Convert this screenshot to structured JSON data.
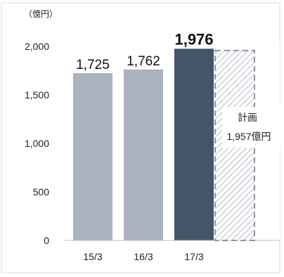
{
  "chart_data": {
    "type": "bar",
    "unit_label": "（億円）",
    "categories": [
      "15/3",
      "16/3",
      "17/3"
    ],
    "values": [
      1725,
      1762,
      1976
    ],
    "value_labels": [
      "1,725",
      "1,762",
      "1,976"
    ],
    "ylim": [
      0,
      2000
    ],
    "yticks": [
      0,
      500,
      1000,
      1500,
      2000
    ],
    "ytick_labels": [
      "0",
      "500",
      "1,000",
      "1,500",
      "2,000"
    ],
    "plan": {
      "value": 1957,
      "label_line1": "計画",
      "label_line2": "1,957億円"
    },
    "grid": false,
    "colors": {
      "past_bar": "#a7aebb",
      "highlight_bar": "#44546a",
      "plan_stroke": "#8a95a5",
      "plan_hatch": "#c9ced6"
    }
  }
}
